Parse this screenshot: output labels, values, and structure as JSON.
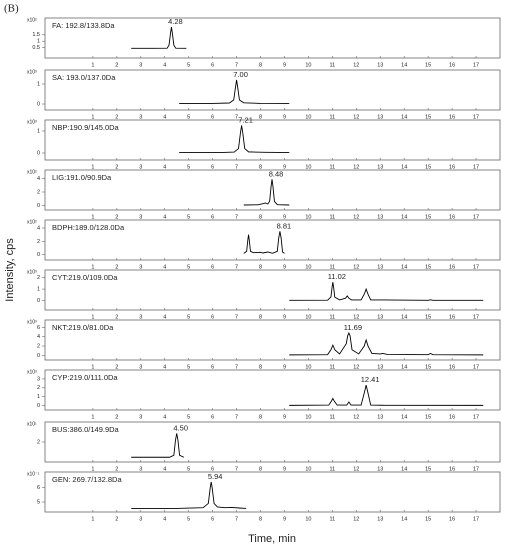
{
  "figure": {
    "label": "(B)",
    "y_axis_label": "Intensity, cps",
    "x_axis_label": "Time, min"
  },
  "chart_data": [
    {
      "type": "line",
      "title": "FA: 192.8/133.8Da",
      "y_multiplier": "x10²",
      "peak_label": "4.28",
      "color": "#000000",
      "xlim": [
        -1,
        18
      ],
      "xticks": [
        1,
        2,
        3,
        4,
        5,
        6,
        7,
        8,
        9,
        10,
        11,
        12,
        13,
        14,
        15,
        16,
        17
      ],
      "ylim": [
        -0.3,
        2.8
      ],
      "yticks": [
        0.5,
        1,
        1.5
      ],
      "x": [
        2.6,
        3.5,
        4.1,
        4.18,
        4.24,
        4.28,
        4.32,
        4.38,
        4.46,
        4.9
      ],
      "values": [
        0.45,
        0.45,
        0.46,
        0.7,
        1.6,
        2.1,
        1.6,
        0.7,
        0.46,
        0.45
      ]
    },
    {
      "type": "line",
      "title": "SA: 193.0/137.0Da",
      "y_multiplier": "x10³",
      "peak_label": "7.00",
      "color": "#000000",
      "xlim": [
        -1,
        18
      ],
      "xticks": [
        1,
        2,
        3,
        4,
        5,
        6,
        7,
        8,
        9,
        10,
        11,
        12,
        13,
        14,
        15,
        16,
        17
      ],
      "ylim": [
        -0.3,
        1.7
      ],
      "yticks": [
        0,
        1
      ],
      "x": [
        4.6,
        6.0,
        6.7,
        6.88,
        6.95,
        7.0,
        7.05,
        7.12,
        7.3,
        8.0,
        9.2
      ],
      "values": [
        0.02,
        0.03,
        0.05,
        0.2,
        0.8,
        1.2,
        0.8,
        0.2,
        0.06,
        0.03,
        0.02
      ]
    },
    {
      "type": "line",
      "title": "NBP:190.9/145.0Da",
      "y_multiplier": "x10³",
      "peak_label": "7.21",
      "color": "#000000",
      "xlim": [
        -1,
        18
      ],
      "xticks": [
        1,
        2,
        3,
        4,
        5,
        6,
        7,
        8,
        9,
        10,
        11,
        12,
        13,
        14,
        15,
        16,
        17
      ],
      "ylim": [
        -0.32,
        1.5
      ],
      "yticks": [
        0,
        1
      ],
      "x": [
        4.6,
        6.3,
        6.9,
        7.08,
        7.16,
        7.21,
        7.26,
        7.34,
        7.5,
        8.2,
        9.2
      ],
      "values": [
        0.02,
        0.02,
        0.04,
        0.2,
        0.9,
        1.25,
        0.9,
        0.2,
        0.05,
        0.03,
        0.02
      ]
    },
    {
      "type": "line",
      "title": "LIG:191.0/90.9Da",
      "y_multiplier": "x10²",
      "peak_label": "8.48",
      "color": "#000000",
      "xlim": [
        -1,
        18
      ],
      "xticks": [
        1,
        2,
        3,
        4,
        5,
        6,
        7,
        8,
        9,
        10,
        11,
        12,
        13,
        14,
        15,
        16,
        17
      ],
      "ylim": [
        -0.7,
        5.3
      ],
      "yticks": [
        0,
        2,
        4
      ],
      "x": [
        7.3,
        7.9,
        8.1,
        8.2,
        8.3,
        8.38,
        8.44,
        8.48,
        8.52,
        8.58,
        8.7,
        9.2
      ],
      "values": [
        0.05,
        0.08,
        0.25,
        0.35,
        0.2,
        0.6,
        2.8,
        3.9,
        2.8,
        0.6,
        0.1,
        0.05
      ]
    },
    {
      "type": "line",
      "title": "BDPH:189.0/128.0Da",
      "y_multiplier": "x10²",
      "peak_label": "8.81",
      "color": "#000000",
      "xlim": [
        -1,
        18
      ],
      "xticks": [
        1,
        2,
        3,
        4,
        5,
        6,
        7,
        8,
        9,
        10,
        11,
        12,
        13,
        14,
        15,
        16,
        17
      ],
      "ylim": [
        -0.8,
        5.2
      ],
      "yticks": [
        0,
        2,
        4
      ],
      "x": [
        7.3,
        7.42,
        7.47,
        7.5,
        7.53,
        7.58,
        7.7,
        8.0,
        8.1,
        8.3,
        8.5,
        8.7,
        8.76,
        8.81,
        8.86,
        8.92,
        9.0
      ],
      "values": [
        0.2,
        0.5,
        2.2,
        3.0,
        2.2,
        0.5,
        0.3,
        0.35,
        0.25,
        0.4,
        0.2,
        0.5,
        2.5,
        3.5,
        2.5,
        0.4,
        0.2
      ]
    },
    {
      "type": "line",
      "title": "CYT:219.0/109.0Da",
      "y_multiplier": "x10³",
      "peak_label": "11.02",
      "color": "#000000",
      "xlim": [
        -1,
        18
      ],
      "xticks": [
        1,
        2,
        3,
        4,
        5,
        6,
        7,
        8,
        9,
        10,
        11,
        12,
        13,
        14,
        15,
        16,
        17
      ],
      "ylim": [
        -0.83,
        2.67
      ],
      "yticks": [
        0,
        1,
        2
      ],
      "x": [
        9.2,
        10.8,
        10.94,
        10.99,
        11.02,
        11.05,
        11.1,
        11.3,
        11.55,
        11.62,
        11.69,
        11.8,
        12.2,
        12.34,
        12.41,
        12.48,
        12.6,
        13.1,
        15.0,
        15.1,
        15.2,
        17.3
      ],
      "values": [
        0.02,
        0.03,
        0.3,
        1.2,
        1.6,
        1.2,
        0.3,
        0.05,
        0.2,
        0.4,
        0.2,
        0.05,
        0.05,
        0.6,
        1.0,
        0.6,
        0.05,
        0.05,
        0.02,
        0.06,
        0.02,
        0.02
      ]
    },
    {
      "type": "line",
      "title": "NKT:219.0/81.0Da",
      "y_multiplier": "x10³",
      "peak_label": "11.69",
      "color": "#000000",
      "xlim": [
        -1,
        18
      ],
      "xticks": [
        1,
        2,
        3,
        4,
        5,
        6,
        7,
        8,
        9,
        10,
        11,
        12,
        13,
        14,
        15,
        16,
        17
      ],
      "ylim": [
        -1,
        7.6
      ],
      "yticks": [
        0,
        2,
        4,
        6
      ],
      "x": [
        9.2,
        10.8,
        10.94,
        11.02,
        11.1,
        11.3,
        11.58,
        11.64,
        11.69,
        11.74,
        11.82,
        12.1,
        12.33,
        12.41,
        12.49,
        12.65,
        13.0,
        13.1,
        13.3,
        15.0,
        15.1,
        15.2,
        17.3
      ],
      "values": [
        0.1,
        0.15,
        1.2,
        2.2,
        1.2,
        0.3,
        2.5,
        4.2,
        4.8,
        4.2,
        1.2,
        0.3,
        2.0,
        3.3,
        2.0,
        0.4,
        0.3,
        0.4,
        0.2,
        0.15,
        0.4,
        0.15,
        0.1
      ]
    },
    {
      "type": "line",
      "title": "CYP:219.0/111.0Da",
      "y_multiplier": "x10³",
      "peak_label": "12.41",
      "color": "#000000",
      "xlim": [
        -1,
        18
      ],
      "xticks": [
        1,
        2,
        3,
        4,
        5,
        6,
        7,
        8,
        9,
        10,
        11,
        12,
        13,
        14,
        15,
        16,
        17
      ],
      "ylim": [
        -0.5,
        4
      ],
      "yticks": [
        0,
        1,
        2,
        3
      ],
      "x": [
        9.2,
        10.85,
        10.96,
        11.02,
        11.08,
        11.2,
        11.6,
        11.69,
        11.78,
        12.2,
        12.34,
        12.41,
        12.48,
        12.6,
        13.2,
        17.3
      ],
      "values": [
        0.02,
        0.05,
        0.5,
        0.8,
        0.5,
        0.05,
        0.05,
        0.4,
        0.05,
        0.05,
        1.5,
        2.3,
        1.5,
        0.05,
        0.03,
        0.02
      ]
    },
    {
      "type": "line",
      "title": "BUS:386.0/149.9Da",
      "y_multiplier": "x10¹",
      "peak_label": "4.50",
      "color": "#000000",
      "xlim": [
        -1,
        18
      ],
      "xticks": [
        1,
        2,
        3,
        4,
        5,
        6,
        7,
        8,
        9,
        10,
        11,
        12,
        13,
        14,
        15,
        16,
        17
      ],
      "ylim": [
        -0.1,
        4.1
      ],
      "yticks": [
        2
      ],
      "x": [
        2.6,
        4.2,
        4.38,
        4.45,
        4.5,
        4.55,
        4.62,
        4.8
      ],
      "values": [
        0.4,
        0.4,
        0.6,
        2.2,
        2.9,
        2.2,
        0.6,
        0.4
      ]
    },
    {
      "type": "line",
      "title": "GEN: 269.7/132.8Da",
      "y_multiplier": "x10⁻¹",
      "peak_label": "5.94",
      "color": "#000000",
      "xlim": [
        -1,
        18
      ],
      "xticks": [
        1,
        2,
        3,
        4,
        5,
        6,
        7,
        8,
        9,
        10,
        11,
        12,
        13,
        14,
        15,
        16,
        17
      ],
      "ylim": [
        4.3,
        7.1
      ],
      "yticks": [
        5,
        6
      ],
      "x": [
        2.6,
        4.5,
        5.6,
        5.82,
        5.9,
        5.94,
        5.98,
        6.06,
        6.2,
        6.5,
        6.8,
        7.1,
        7.4
      ],
      "values": [
        4.55,
        4.55,
        4.6,
        4.9,
        6.0,
        6.4,
        6.0,
        4.9,
        4.65,
        4.6,
        4.62,
        4.58,
        4.55
      ]
    }
  ]
}
